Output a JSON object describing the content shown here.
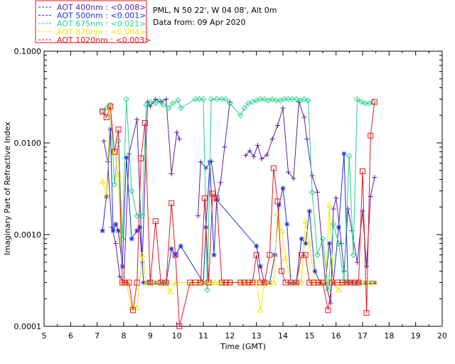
{
  "chart_data": {
    "type": "line",
    "header": {
      "location": "PML, N 50 22', W 04 08', Alt 0m",
      "date": "Data from: 09 Apr 2020"
    },
    "xlabel": "Time (GMT)",
    "ylabel": "Imaginary Part of Refractive Index",
    "xlim": [
      5,
      20
    ],
    "ylim": [
      0.0001,
      0.1
    ],
    "yscale": "log",
    "xticks": [
      "5",
      "6",
      "7",
      "8",
      "9",
      "10",
      "11",
      "12",
      "13",
      "14",
      "15",
      "16",
      "17",
      "18",
      "19",
      "20"
    ],
    "yticks": [
      "0.0001",
      "0.0010",
      "0.0100",
      "0.1000"
    ],
    "series": [
      {
        "name": "AOT  400nm : <0.008>",
        "color": "#5a1fa0",
        "marker": "plus",
        "x": [
          7.25,
          7.4,
          7.55,
          7.7,
          7.85,
          8.0,
          8.2,
          8.5,
          8.7,
          8.9,
          9.0,
          9.2,
          9.4,
          9.6,
          9.8,
          10.0,
          10.1,
          10.6,
          10.8,
          10.9,
          11.1,
          11.3,
          11.5,
          11.65,
          11.8,
          12.0,
          12.45,
          12.6,
          12.75,
          12.9,
          13.05,
          13.2,
          13.4,
          13.6,
          13.8,
          14.0,
          14.2,
          14.4,
          14.6,
          14.8,
          14.9,
          15.1,
          15.3,
          15.6,
          15.8,
          15.9,
          16.0,
          16.2,
          16.3,
          16.45,
          16.6,
          16.8,
          17.0,
          17.15,
          17.3,
          17.45
        ],
        "y": [
          0.0105,
          0.0062,
          0.0012,
          0.0008,
          0.00035,
          0.0003,
          0.0076,
          0.018,
          0.0005,
          0.028,
          0.025,
          0.03,
          0.028,
          0.03,
          0.0046,
          0.013,
          0.011,
          null,
          0.0016,
          0.0062,
          0.0053,
          0.0063,
          0.0024,
          0.0037,
          0.009,
          0.028,
          null,
          0.0073,
          0.0082,
          0.0071,
          0.0094,
          0.0067,
          0.0074,
          0.011,
          0.0155,
          0.024,
          0.0048,
          0.0041,
          0.028,
          0.019,
          0.011,
          0.0044,
          0.0029,
          0.0003,
          0.00018,
          0.0019,
          0.0025,
          0.0008,
          0.0004,
          0.0019,
          0.0011,
          0.0005,
          0.0018,
          0.00045,
          0.0026,
          0.0042
        ]
      },
      {
        "name": "AOT  500nm : <0.001>",
        "color": "#1f2fd6",
        "marker": "star",
        "x": [
          7.2,
          7.35,
          7.5,
          7.6,
          7.7,
          7.8,
          7.95,
          8.1,
          8.3,
          8.5,
          8.6,
          8.75,
          8.9,
          9.0,
          9.2,
          9.4,
          9.6,
          9.8,
          9.95,
          10.15,
          11.0,
          11.1,
          11.25,
          11.4,
          11.5,
          13.0,
          13.15,
          13.3,
          13.5,
          13.7,
          13.85,
          14.0,
          14.15,
          14.3,
          14.5,
          14.7,
          14.85,
          15.0,
          15.2,
          15.4,
          15.6,
          15.75,
          15.9,
          16.1,
          16.3,
          16.45,
          16.6,
          16.75,
          16.9,
          17.1,
          17.3,
          17.45
        ],
        "y": [
          0.0011,
          0.0026,
          0.014,
          0.0011,
          0.0013,
          0.0011,
          0.00045,
          0.0069,
          0.0009,
          0.0011,
          0.0012,
          0.0003,
          0.0003,
          0.0003,
          0.0003,
          0.0003,
          0.0003,
          0.0007,
          0.0006,
          0.00075,
          0.0003,
          0.0012,
          0.0062,
          0.0006,
          0.0024,
          0.00075,
          0.00045,
          0.0003,
          0.0003,
          0.0006,
          0.0021,
          0.0032,
          0.0013,
          0.0003,
          0.0003,
          0.0009,
          0.0008,
          0.0018,
          0.0004,
          0.0003,
          0.0003,
          0.0008,
          0.0003,
          0.0012,
          0.0076,
          0.0003,
          0.0003,
          0.0003,
          0.0003,
          0.0003,
          0.0003,
          0.0003
        ]
      },
      {
        "name": "AOT  675nm : <0.021>",
        "color": "#1fd38a",
        "marker": "diamond",
        "x": [
          7.2,
          7.35,
          7.5,
          7.65,
          7.8,
          7.95,
          8.1,
          8.3,
          8.5,
          8.7,
          8.85,
          9.0,
          9.2,
          9.35,
          9.5,
          9.7,
          9.85,
          10.05,
          10.15,
          10.7,
          10.85,
          11.0,
          11.15,
          11.3,
          11.5,
          11.7,
          11.85,
          12.0,
          12.4,
          12.55,
          12.7,
          12.85,
          13.0,
          13.15,
          13.3,
          13.45,
          13.6,
          13.75,
          13.9,
          14.05,
          14.2,
          14.35,
          14.5,
          14.65,
          14.8,
          14.95,
          15.1,
          15.3,
          15.5,
          15.7,
          15.9,
          16.1,
          16.3,
          16.5,
          16.65,
          16.8,
          16.95,
          17.1,
          17.25,
          17.4
        ],
        "y": [
          0.022,
          0.024,
          0.026,
          0.0035,
          0.0105,
          0.0009,
          0.03,
          0.003,
          0.0016,
          0.0016,
          0.026,
          0.028,
          0.027,
          0.029,
          0.026,
          0.024,
          0.027,
          0.029,
          0.024,
          0.03,
          0.03,
          0.03,
          0.00025,
          0.03,
          0.03,
          0.03,
          0.03,
          0.027,
          0.02,
          0.024,
          0.027,
          0.028,
          0.029,
          0.03,
          0.03,
          0.029,
          0.03,
          0.029,
          0.029,
          0.03,
          0.03,
          0.03,
          0.03,
          0.029,
          0.03,
          0.029,
          0.0029,
          0.0006,
          0.0009,
          0.00025,
          0.0013,
          0.0008,
          0.0003,
          0.0072,
          0.0006,
          0.03,
          0.028,
          0.027,
          0.027,
          0.028
        ]
      },
      {
        "name": "AOT  870nm : <0.004>",
        "color": "#f2e600",
        "marker": "triangle",
        "x": [
          7.2,
          7.35,
          7.5,
          7.65,
          7.8,
          7.95,
          8.1,
          8.3,
          8.5,
          8.7,
          8.85,
          9.0,
          9.2,
          9.4,
          9.6,
          9.75,
          9.95,
          10.6,
          10.8,
          11.0,
          11.15,
          11.3,
          11.45,
          11.6,
          11.8,
          12.0,
          12.4,
          12.6,
          12.8,
          13.0,
          13.15,
          13.3,
          13.5,
          13.65,
          13.8,
          13.95,
          14.1,
          14.3,
          14.5,
          14.7,
          14.85,
          15.0,
          15.2,
          15.4,
          15.6,
          15.75,
          15.9,
          16.1,
          16.3,
          16.5,
          16.7,
          16.9,
          17.1,
          17.3,
          17.45
        ],
        "y": [
          0.0038,
          0.0027,
          0.025,
          0.0078,
          0.0045,
          0.0003,
          0.0003,
          0.00016,
          0.00016,
          0.0006,
          0.0003,
          0.0003,
          0.0003,
          0.0003,
          0.0003,
          0.00024,
          0.0003,
          0.0003,
          0.0003,
          0.0003,
          0.0003,
          0.0003,
          0.0003,
          0.0003,
          0.0003,
          0.0003,
          0.0003,
          0.0003,
          0.0003,
          0.0003,
          0.00015,
          0.0003,
          0.0003,
          0.0003,
          0.0017,
          0.0011,
          0.00055,
          0.0003,
          0.0003,
          0.0003,
          0.0014,
          0.0008,
          0.0003,
          0.0003,
          0.0003,
          0.0021,
          0.0003,
          0.00025,
          0.0003,
          0.0003,
          0.0003,
          0.0003,
          0.0003,
          0.0003,
          0.0003
        ]
      },
      {
        "name": "AOT 1020nm : <0.003>",
        "color": "#e8141e",
        "marker": "square",
        "x": [
          7.2,
          7.35,
          7.5,
          7.65,
          7.8,
          7.95,
          8.05,
          8.2,
          8.35,
          8.5,
          8.65,
          8.8,
          9.0,
          9.2,
          9.4,
          9.6,
          9.8,
          9.95,
          10.1,
          10.5,
          10.7,
          10.9,
          11.05,
          11.2,
          11.35,
          11.5,
          11.7,
          11.85,
          12.0,
          12.4,
          12.55,
          12.7,
          12.85,
          13.0,
          13.15,
          13.3,
          13.5,
          13.65,
          13.8,
          13.95,
          14.1,
          14.3,
          14.5,
          14.7,
          14.85,
          15.0,
          15.15,
          15.35,
          15.5,
          15.7,
          15.85,
          16.05,
          16.25,
          16.4,
          16.55,
          16.7,
          16.85,
          17.0,
          17.15,
          17.3,
          17.45
        ],
        "y": [
          0.022,
          0.019,
          0.025,
          0.008,
          0.014,
          0.0003,
          0.0003,
          0.0003,
          0.00015,
          0.0003,
          0.0068,
          0.0165,
          0.0003,
          0.0014,
          0.0003,
          0.0003,
          0.0022,
          0.0006,
          0.0001,
          0.0003,
          0.0003,
          0.0003,
          0.0025,
          0.0003,
          0.0028,
          0.0025,
          0.0003,
          0.0003,
          0.0003,
          0.0003,
          0.0003,
          0.0003,
          0.0003,
          0.0006,
          0.0003,
          0.0003,
          0.0006,
          0.0053,
          0.0023,
          0.0004,
          0.0003,
          0.0003,
          0.0003,
          0.0006,
          0.0006,
          0.0003,
          0.0003,
          0.0003,
          0.0003,
          0.00015,
          0.0003,
          0.0003,
          0.0003,
          0.0003,
          0.0003,
          0.0003,
          0.0003,
          0.0049,
          0.00014,
          0.012,
          0.028
        ]
      }
    ]
  }
}
